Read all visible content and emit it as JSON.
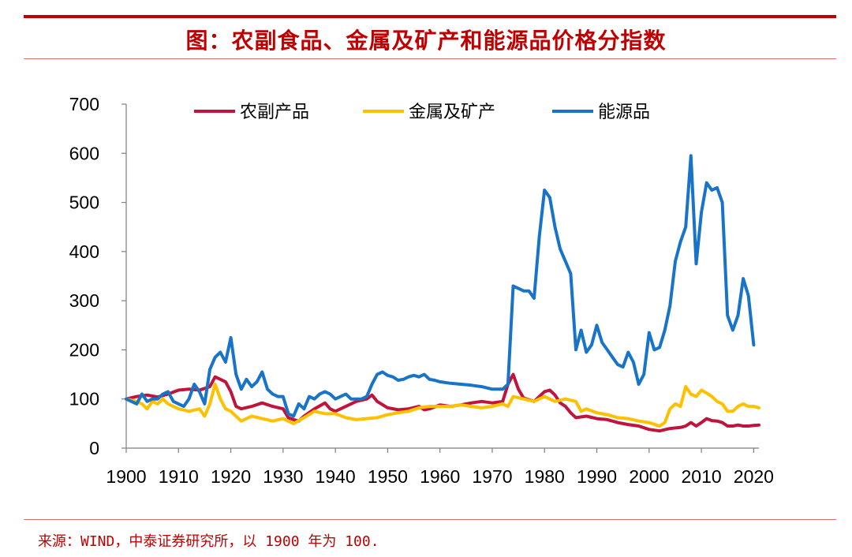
{
  "header": {
    "title": "图：农副食品、金属及矿产和能源品价格分指数"
  },
  "footer": {
    "source": "来源：WIND，中泰证券研究所，以 1900 年为 100."
  },
  "chart_data": {
    "type": "line",
    "title": "",
    "xlabel": "",
    "ylabel": "",
    "xlim": [
      1900,
      2021
    ],
    "ylim": [
      0,
      700
    ],
    "x_ticks": [
      "1900",
      "1910",
      "1920",
      "1930",
      "1940",
      "1950",
      "1960",
      "1970",
      "1980",
      "1990",
      "2000",
      "2010",
      "2020"
    ],
    "y_ticks": [
      "0",
      "100",
      "200",
      "300",
      "400",
      "500",
      "600",
      "700"
    ],
    "legend_position": "top",
    "series": [
      {
        "name": "农副产品",
        "color": "#c0143c",
        "points": [
          [
            1900,
            100
          ],
          [
            1902,
            105
          ],
          [
            1904,
            108
          ],
          [
            1906,
            104
          ],
          [
            1908,
            110
          ],
          [
            1910,
            118
          ],
          [
            1912,
            120
          ],
          [
            1914,
            118
          ],
          [
            1916,
            125
          ],
          [
            1917,
            145
          ],
          [
            1918,
            140
          ],
          [
            1919,
            135
          ],
          [
            1920,
            115
          ],
          [
            1921,
            85
          ],
          [
            1922,
            80
          ],
          [
            1924,
            85
          ],
          [
            1926,
            92
          ],
          [
            1928,
            85
          ],
          [
            1930,
            80
          ],
          [
            1931,
            62
          ],
          [
            1932,
            58
          ],
          [
            1933,
            55
          ],
          [
            1934,
            65
          ],
          [
            1936,
            80
          ],
          [
            1938,
            92
          ],
          [
            1939,
            80
          ],
          [
            1940,
            75
          ],
          [
            1942,
            85
          ],
          [
            1944,
            95
          ],
          [
            1946,
            100
          ],
          [
            1947,
            108
          ],
          [
            1948,
            95
          ],
          [
            1950,
            82
          ],
          [
            1952,
            78
          ],
          [
            1954,
            80
          ],
          [
            1956,
            85
          ],
          [
            1957,
            78
          ],
          [
            1958,
            80
          ],
          [
            1960,
            88
          ],
          [
            1962,
            85
          ],
          [
            1964,
            88
          ],
          [
            1966,
            92
          ],
          [
            1968,
            95
          ],
          [
            1970,
            92
          ],
          [
            1972,
            95
          ],
          [
            1973,
            130
          ],
          [
            1974,
            150
          ],
          [
            1975,
            120
          ],
          [
            1976,
            102
          ],
          [
            1978,
            95
          ],
          [
            1980,
            115
          ],
          [
            1981,
            118
          ],
          [
            1982,
            108
          ],
          [
            1983,
            92
          ],
          [
            1984,
            85
          ],
          [
            1985,
            72
          ],
          [
            1986,
            62
          ],
          [
            1988,
            65
          ],
          [
            1990,
            60
          ],
          [
            1992,
            58
          ],
          [
            1994,
            52
          ],
          [
            1996,
            48
          ],
          [
            1998,
            45
          ],
          [
            2000,
            38
          ],
          [
            2002,
            35
          ],
          [
            2004,
            40
          ],
          [
            2006,
            42
          ],
          [
            2007,
            45
          ],
          [
            2008,
            52
          ],
          [
            2009,
            45
          ],
          [
            2010,
            52
          ],
          [
            2011,
            60
          ],
          [
            2012,
            56
          ],
          [
            2013,
            55
          ],
          [
            2014,
            52
          ],
          [
            2015,
            45
          ],
          [
            2016,
            45
          ],
          [
            2017,
            47
          ],
          [
            2018,
            45
          ],
          [
            2019,
            45
          ],
          [
            2020,
            46
          ],
          [
            2021,
            47
          ]
        ]
      },
      {
        "name": "金属及矿产",
        "color": "#ffc000",
        "points": [
          [
            1900,
            100
          ],
          [
            1902,
            95
          ],
          [
            1903,
            90
          ],
          [
            1904,
            80
          ],
          [
            1905,
            95
          ],
          [
            1906,
            90
          ],
          [
            1907,
            100
          ],
          [
            1908,
            90
          ],
          [
            1910,
            80
          ],
          [
            1912,
            75
          ],
          [
            1914,
            80
          ],
          [
            1915,
            65
          ],
          [
            1916,
            90
          ],
          [
            1917,
            130
          ],
          [
            1918,
            100
          ],
          [
            1919,
            80
          ],
          [
            1920,
            75
          ],
          [
            1921,
            65
          ],
          [
            1922,
            55
          ],
          [
            1924,
            65
          ],
          [
            1926,
            60
          ],
          [
            1928,
            55
          ],
          [
            1930,
            60
          ],
          [
            1932,
            50
          ],
          [
            1934,
            62
          ],
          [
            1936,
            75
          ],
          [
            1938,
            70
          ],
          [
            1940,
            70
          ],
          [
            1942,
            62
          ],
          [
            1944,
            58
          ],
          [
            1946,
            60
          ],
          [
            1948,
            62
          ],
          [
            1950,
            68
          ],
          [
            1952,
            72
          ],
          [
            1954,
            75
          ],
          [
            1956,
            82
          ],
          [
            1958,
            85
          ],
          [
            1960,
            85
          ],
          [
            1962,
            85
          ],
          [
            1964,
            88
          ],
          [
            1966,
            85
          ],
          [
            1968,
            82
          ],
          [
            1970,
            85
          ],
          [
            1972,
            90
          ],
          [
            1973,
            85
          ],
          [
            1974,
            105
          ],
          [
            1976,
            100
          ],
          [
            1978,
            95
          ],
          [
            1980,
            105
          ],
          [
            1982,
            95
          ],
          [
            1984,
            100
          ],
          [
            1986,
            95
          ],
          [
            1987,
            75
          ],
          [
            1988,
            80
          ],
          [
            1990,
            72
          ],
          [
            1992,
            68
          ],
          [
            1994,
            62
          ],
          [
            1996,
            60
          ],
          [
            1998,
            55
          ],
          [
            2000,
            52
          ],
          [
            2002,
            45
          ],
          [
            2003,
            52
          ],
          [
            2004,
            80
          ],
          [
            2005,
            90
          ],
          [
            2006,
            85
          ],
          [
            2007,
            125
          ],
          [
            2008,
            110
          ],
          [
            2009,
            105
          ],
          [
            2010,
            118
          ],
          [
            2011,
            112
          ],
          [
            2012,
            105
          ],
          [
            2013,
            95
          ],
          [
            2014,
            90
          ],
          [
            2015,
            75
          ],
          [
            2016,
            75
          ],
          [
            2017,
            85
          ],
          [
            2018,
            90
          ],
          [
            2019,
            85
          ],
          [
            2020,
            85
          ],
          [
            2021,
            82
          ]
        ]
      },
      {
        "name": "能源品",
        "color": "#1874c8",
        "points": [
          [
            1900,
            100
          ],
          [
            1901,
            95
          ],
          [
            1902,
            90
          ],
          [
            1903,
            110
          ],
          [
            1904,
            95
          ],
          [
            1905,
            100
          ],
          [
            1906,
            100
          ],
          [
            1907,
            110
          ],
          [
            1908,
            115
          ],
          [
            1909,
            95
          ],
          [
            1910,
            90
          ],
          [
            1911,
            85
          ],
          [
            1912,
            100
          ],
          [
            1913,
            130
          ],
          [
            1914,
            115
          ],
          [
            1915,
            90
          ],
          [
            1916,
            160
          ],
          [
            1917,
            185
          ],
          [
            1918,
            195
          ],
          [
            1919,
            175
          ],
          [
            1920,
            225
          ],
          [
            1921,
            150
          ],
          [
            1922,
            120
          ],
          [
            1923,
            140
          ],
          [
            1924,
            125
          ],
          [
            1925,
            135
          ],
          [
            1926,
            155
          ],
          [
            1927,
            120
          ],
          [
            1928,
            110
          ],
          [
            1929,
            105
          ],
          [
            1930,
            105
          ],
          [
            1931,
            70
          ],
          [
            1932,
            65
          ],
          [
            1933,
            90
          ],
          [
            1934,
            80
          ],
          [
            1935,
            105
          ],
          [
            1936,
            100
          ],
          [
            1937,
            110
          ],
          [
            1938,
            115
          ],
          [
            1939,
            110
          ],
          [
            1940,
            100
          ],
          [
            1941,
            105
          ],
          [
            1942,
            110
          ],
          [
            1943,
            100
          ],
          [
            1944,
            100
          ],
          [
            1945,
            100
          ],
          [
            1946,
            105
          ],
          [
            1947,
            130
          ],
          [
            1948,
            150
          ],
          [
            1949,
            155
          ],
          [
            1950,
            148
          ],
          [
            1951,
            145
          ],
          [
            1952,
            138
          ],
          [
            1953,
            140
          ],
          [
            1954,
            145
          ],
          [
            1955,
            148
          ],
          [
            1956,
            145
          ],
          [
            1957,
            150
          ],
          [
            1958,
            140
          ],
          [
            1959,
            138
          ],
          [
            1960,
            135
          ],
          [
            1962,
            132
          ],
          [
            1964,
            130
          ],
          [
            1966,
            128
          ],
          [
            1968,
            125
          ],
          [
            1970,
            120
          ],
          [
            1972,
            120
          ],
          [
            1973,
            130
          ],
          [
            1974,
            330
          ],
          [
            1975,
            325
          ],
          [
            1976,
            320
          ],
          [
            1977,
            320
          ],
          [
            1978,
            305
          ],
          [
            1979,
            430
          ],
          [
            1980,
            525
          ],
          [
            1981,
            510
          ],
          [
            1982,
            450
          ],
          [
            1983,
            405
          ],
          [
            1984,
            380
          ],
          [
            1985,
            355
          ],
          [
            1986,
            200
          ],
          [
            1987,
            240
          ],
          [
            1988,
            195
          ],
          [
            1989,
            210
          ],
          [
            1990,
            250
          ],
          [
            1991,
            215
          ],
          [
            1992,
            200
          ],
          [
            1993,
            185
          ],
          [
            1994,
            170
          ],
          [
            1995,
            165
          ],
          [
            1996,
            195
          ],
          [
            1997,
            175
          ],
          [
            1998,
            130
          ],
          [
            1999,
            150
          ],
          [
            2000,
            235
          ],
          [
            2001,
            200
          ],
          [
            2002,
            205
          ],
          [
            2003,
            240
          ],
          [
            2004,
            290
          ],
          [
            2005,
            380
          ],
          [
            2006,
            420
          ],
          [
            2007,
            450
          ],
          [
            2008,
            595
          ],
          [
            2009,
            375
          ],
          [
            2010,
            480
          ],
          [
            2011,
            540
          ],
          [
            2012,
            525
          ],
          [
            2013,
            530
          ],
          [
            2014,
            500
          ],
          [
            2015,
            270
          ],
          [
            2016,
            240
          ],
          [
            2017,
            270
          ],
          [
            2018,
            345
          ],
          [
            2019,
            310
          ],
          [
            2020,
            210
          ]
        ]
      }
    ]
  }
}
